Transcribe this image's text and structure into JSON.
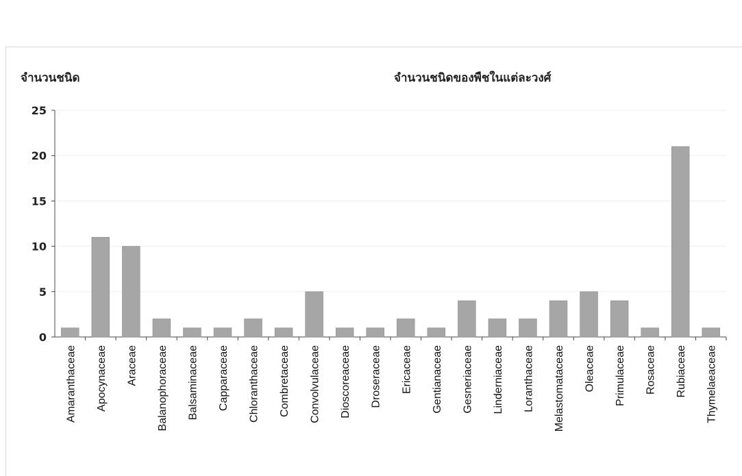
{
  "chart_data": {
    "type": "bar",
    "title": "จำนวนชนิดของพืชในแต่ละวงศ์",
    "ylabel": "จำนวนชนิด",
    "xlabel": "",
    "ylim": [
      0,
      25
    ],
    "yticks": [
      0,
      5,
      10,
      15,
      20,
      25
    ],
    "grid": true,
    "bar_color": "#a6a6a6",
    "categories": [
      "Amaranthaceae",
      "Apocynaceae",
      "Araceae",
      "Balanophoraceae",
      "Balsaminaceae",
      "Capparaceae",
      "Chloranthaceae",
      "Combretaceae",
      "Convolvulaceae",
      "Dioscoreaceae",
      "Droseraceae",
      "Ericaceae",
      "Gentianaceae",
      "Gesneriaceae",
      "Linderniaceae",
      "Loranthaceae",
      "Melastomataceae",
      "Oleaceae",
      "Primulaceae",
      "Rosaceae",
      "Rubiaceae",
      "Thymelaeaceae"
    ],
    "values": [
      1,
      11,
      10,
      2,
      1,
      1,
      2,
      1,
      5,
      1,
      1,
      2,
      1,
      4,
      2,
      2,
      4,
      5,
      4,
      1,
      21,
      1
    ]
  }
}
